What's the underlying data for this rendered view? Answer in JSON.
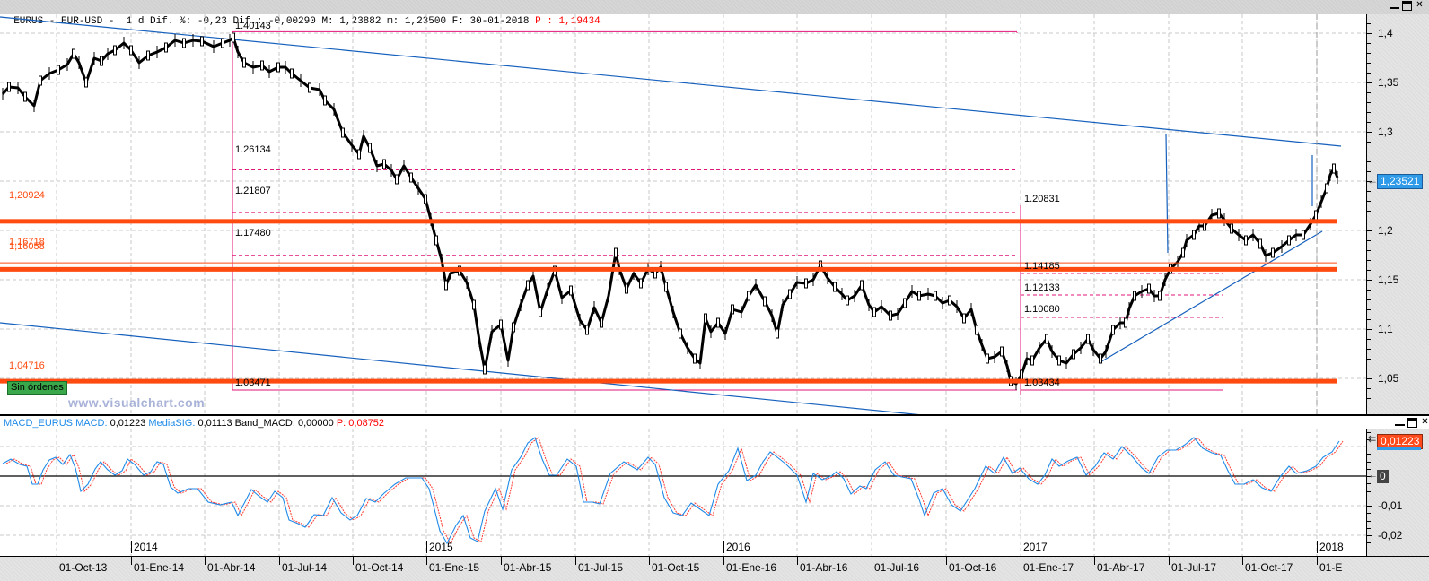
{
  "titlebar": {
    "symbol": "EURUS",
    "name": "EUR-USD",
    "timeframe": "1 d",
    "text": "EURUS - EUR-USD -  1 d Dif. %: -0,23 Dif.: -0,00290 M: 1,23882 m: 1,23500 F: 30-01-2018 ",
    "change_pct": "-0,23",
    "change_abs": "-0,00290",
    "high": "1,23882",
    "low": "1,23500",
    "date": "30-01-2018",
    "last_label": "P : 1,19434",
    "window_buttons": [
      "minimize",
      "maximize",
      "close"
    ]
  },
  "price_panel": {
    "y_axis_labels": [
      "1,4",
      "1,35",
      "1,3",
      "1,25",
      "1,2",
      "1,15",
      "1,1",
      "1,05"
    ],
    "current_price_tag": "1,23521",
    "horizontal_levels": [
      {
        "label": "1,20924",
        "value": 1.20924,
        "color": "#ff4b10"
      },
      {
        "label": "1,16718",
        "value": 1.16718,
        "color": "#ff4b10"
      },
      {
        "label": "1,16058",
        "value": 1.16058,
        "color": "#ff4b10"
      },
      {
        "label": "1,04716",
        "value": 1.04716,
        "color": "#ff4b10"
      }
    ],
    "fibonacci_down": {
      "high": "1.40143",
      "low": "1.03471",
      "levels": [
        "1.26134",
        "1.21807",
        "1.17480"
      ]
    },
    "fibonacci_up": {
      "high": "1.20831",
      "low": "1.03434",
      "levels": [
        "1.14185",
        "1.12133",
        "1.10080"
      ]
    },
    "orders_badge": "Sin órdenes",
    "watermark": "www.visualchart.com",
    "line_colors": {
      "trendline": "#1560bd",
      "fib": "#e0157a",
      "level": "#ff4b10",
      "candles": "#000000"
    }
  },
  "macd_panel": {
    "legend": {
      "name": "MACD_EURUS",
      "macd_label": "MACD:",
      "macd_value": "0,01223",
      "signal_label": "MediaSIG:",
      "signal_value": "0,01113",
      "band_label": "Band_MACD:",
      "band_value": "0,00000",
      "p_label": "P:",
      "p_value": "0,08752"
    },
    "y_axis_labels": [
      "-0,01",
      "-0,02"
    ],
    "macd_tag": "0,01223",
    "zero_tag": "0",
    "colors": {
      "macd": "#1e8ae8",
      "signal": "#ff3a30"
    }
  },
  "x_axis": {
    "dates": [
      "01-Oct-13",
      "01-Ene-14",
      "01-Abr-14",
      "01-Jul-14",
      "01-Oct-14",
      "01-Ene-15",
      "01-Abr-15",
      "01-Jul-15",
      "01-Oct-15",
      "01-Ene-16",
      "01-Abr-16",
      "01-Jul-16",
      "01-Oct-16",
      "01-Ene-17",
      "01-Abr-17",
      "01-Jul-17",
      "01-Oct-17",
      "01-E"
    ],
    "years": [
      "2014",
      "2015",
      "2016",
      "2017",
      "2018"
    ]
  }
}
